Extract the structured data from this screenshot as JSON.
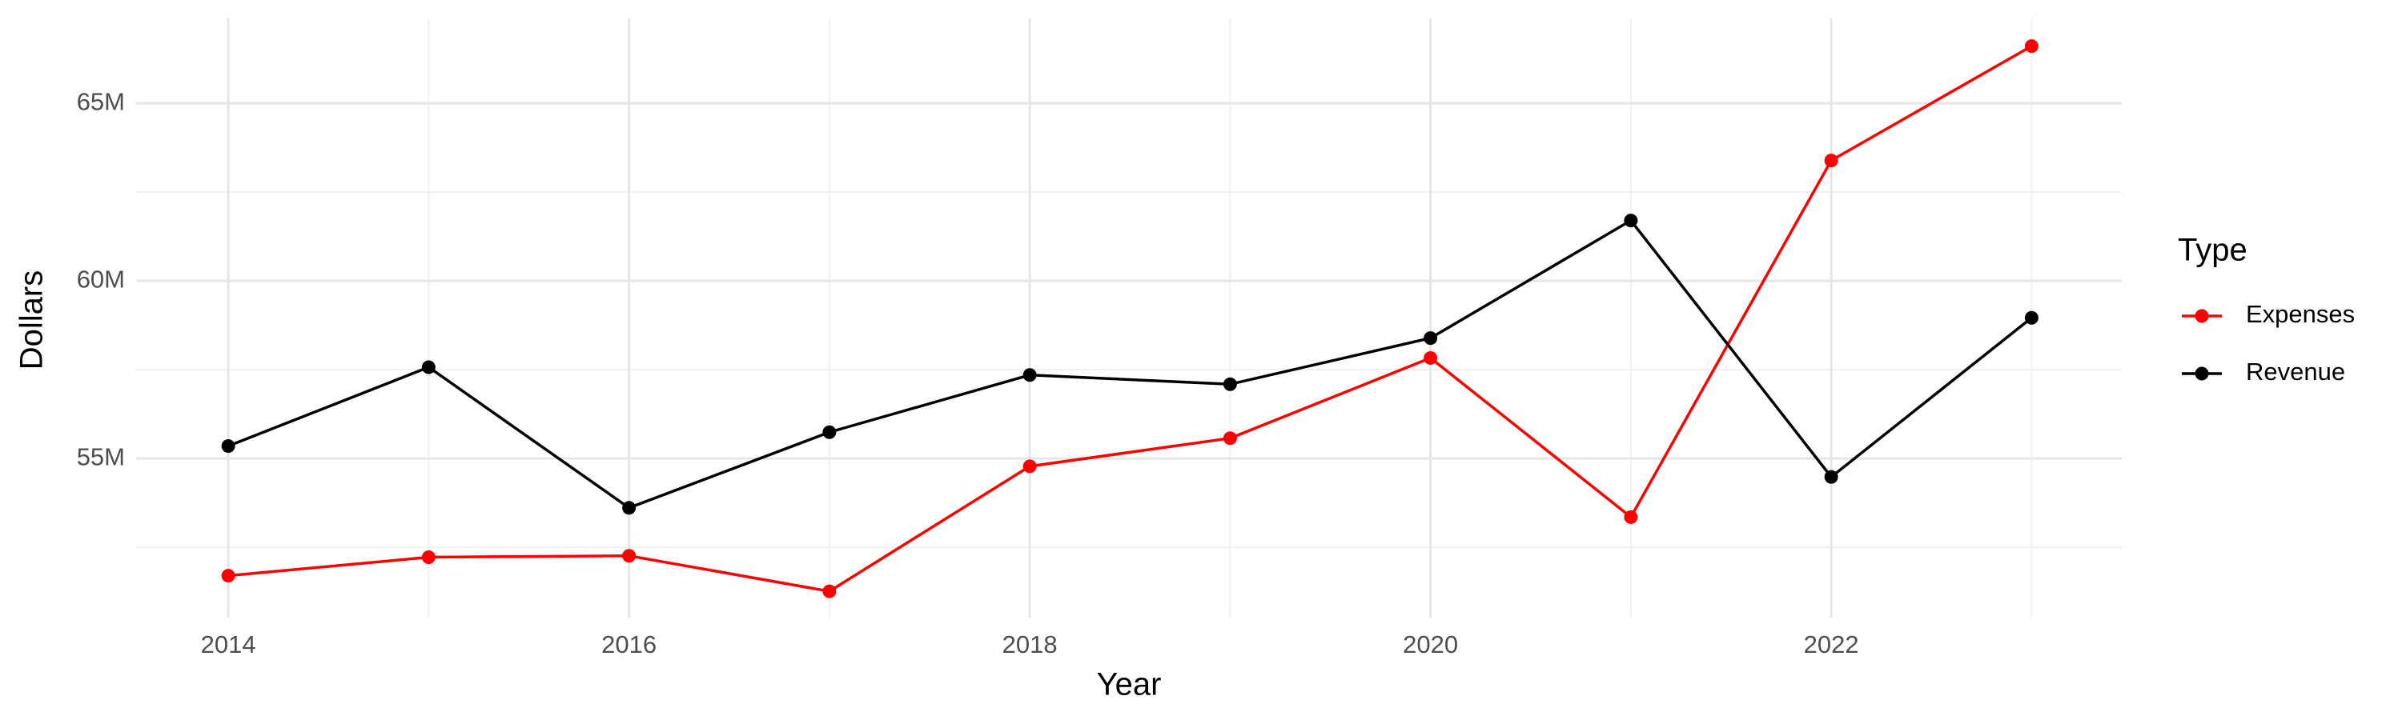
{
  "chart_data": {
    "type": "line",
    "x_label": "Year",
    "y_label": "Dollars",
    "x": [
      2014,
      2015,
      2016,
      2017,
      2018,
      2019,
      2020,
      2021,
      2022,
      2023
    ],
    "series": [
      {
        "name": "Expenses",
        "color": "#ff0000",
        "values": [
          51700000,
          52220000,
          52260000,
          51260000,
          54780000,
          55570000,
          57830000,
          53350000,
          63390000,
          66610000
        ]
      },
      {
        "name": "Revenue",
        "color": "#000000",
        "values": [
          55350000,
          57570000,
          53610000,
          55740000,
          57350000,
          57090000,
          58390000,
          61700000,
          54480000,
          58960000
        ]
      }
    ],
    "xlim": [
      2013.54,
      2023.45
    ],
    "xticks": [
      2014,
      2016,
      2018,
      2020,
      2022
    ],
    "ylim": [
      50520000,
      67390000
    ],
    "yticks": [
      {
        "value": 55000000,
        "label": "55M"
      },
      {
        "value": 60000000,
        "label": "60M"
      },
      {
        "value": 65000000,
        "label": "65M"
      }
    ],
    "grid": true,
    "minor_grid": true,
    "legend_title": "Type",
    "legend_position": "right"
  }
}
